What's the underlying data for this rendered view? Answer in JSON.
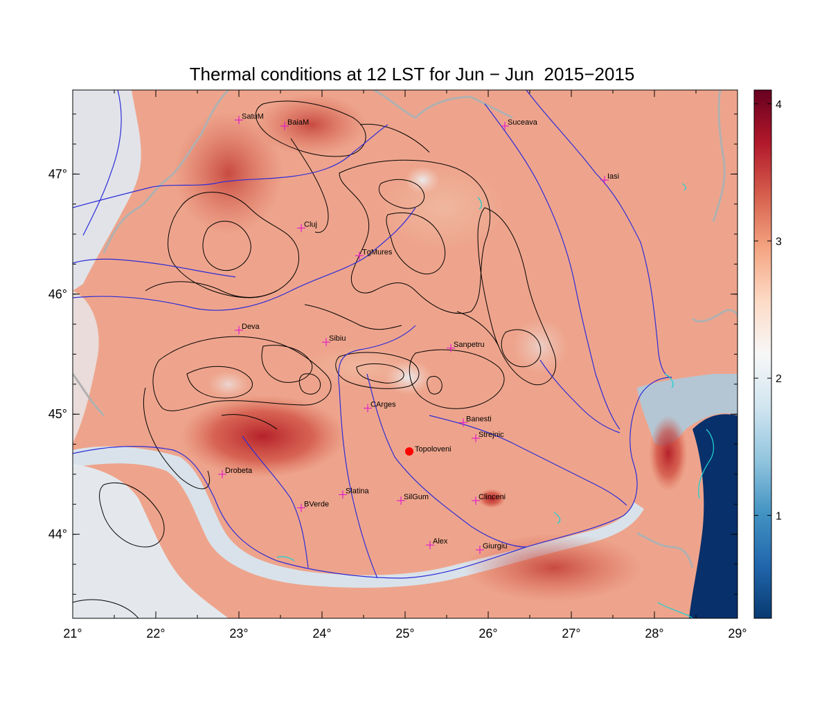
{
  "title": "Thermal conditions at 12 LST for Jun − Jun  2015−2015",
  "map": {
    "lon_range": [
      21,
      29
    ],
    "lat_range": [
      43.3,
      47.7
    ],
    "lon_ticks": [
      {
        "value": 21,
        "label": "21°"
      },
      {
        "value": 22,
        "label": "22°"
      },
      {
        "value": 23,
        "label": "23°"
      },
      {
        "value": 24,
        "label": "24°"
      },
      {
        "value": 25,
        "label": "25°"
      },
      {
        "value": 26,
        "label": "26°"
      },
      {
        "value": 27,
        "label": "27°"
      },
      {
        "value": 28,
        "label": "28°"
      },
      {
        "value": 29,
        "label": "29°"
      }
    ],
    "lat_ticks": [
      {
        "value": 44,
        "label": "44°"
      },
      {
        "value": 45,
        "label": "45°"
      },
      {
        "value": 46,
        "label": "46°"
      },
      {
        "value": 47,
        "label": "47°"
      }
    ],
    "colors": {
      "river": "#2b2bd8",
      "border": "#b0b0b0",
      "contour": "#000000",
      "city_marker": "#e020c8",
      "highlight_marker": "#ff0000",
      "lakes": "#20d0d0"
    },
    "cities": [
      {
        "name": "SatuM",
        "lon": 23.0,
        "lat": 47.45
      },
      {
        "name": "BaiaM",
        "lon": 23.55,
        "lat": 47.4
      },
      {
        "name": "Suceava",
        "lon": 26.2,
        "lat": 47.4
      },
      {
        "name": "Iasi",
        "lon": 27.4,
        "lat": 46.95
      },
      {
        "name": "Cluj",
        "lon": 23.75,
        "lat": 46.55
      },
      {
        "name": "TgMures",
        "lon": 24.45,
        "lat": 46.32
      },
      {
        "name": "Deva",
        "lon": 23.0,
        "lat": 45.7
      },
      {
        "name": "Sibiu",
        "lon": 24.05,
        "lat": 45.6
      },
      {
        "name": "Sanpetru",
        "lon": 25.55,
        "lat": 45.55
      },
      {
        "name": "CArges",
        "lon": 24.55,
        "lat": 45.05
      },
      {
        "name": "Banesti",
        "lon": 25.7,
        "lat": 44.93
      },
      {
        "name": "Strejnic",
        "lon": 25.85,
        "lat": 44.8
      },
      {
        "name": "Drobeta",
        "lon": 22.8,
        "lat": 44.5
      },
      {
        "name": "Slatina",
        "lon": 24.25,
        "lat": 44.33
      },
      {
        "name": "SilGum",
        "lon": 24.95,
        "lat": 44.28
      },
      {
        "name": "Clinceni",
        "lon": 25.85,
        "lat": 44.28
      },
      {
        "name": "BVerde",
        "lon": 23.75,
        "lat": 44.22
      },
      {
        "name": "Alex",
        "lon": 25.3,
        "lat": 43.91
      },
      {
        "name": "Giurgiu",
        "lon": 25.9,
        "lat": 43.87
      }
    ],
    "highlight": {
      "name": "Topoloveni",
      "lon": 25.05,
      "lat": 44.69
    }
  },
  "colorbar": {
    "min": 0.25,
    "max": 4.1,
    "ticks": [
      {
        "value": 1,
        "label": "1"
      },
      {
        "value": 2,
        "label": "2"
      },
      {
        "value": 3,
        "label": "3"
      },
      {
        "value": 4,
        "label": "4"
      }
    ],
    "stops": [
      "#083a70",
      "#2166ac",
      "#4393c3",
      "#92c5de",
      "#d1e5f0",
      "#f7f7f7",
      "#fddbc7",
      "#f4a582",
      "#d6604d",
      "#b2182b",
      "#67001f"
    ]
  }
}
